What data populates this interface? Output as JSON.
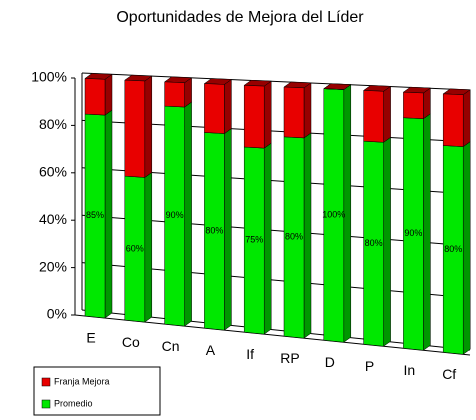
{
  "chart_data": {
    "type": "bar",
    "stacked": true,
    "title": "Oportunidades de Mejora del Líder",
    "categories": [
      "E",
      "Co",
      "Cn",
      "A",
      "If",
      "RP",
      "D",
      "P",
      "In",
      "Cf"
    ],
    "series": [
      {
        "name": "Promedio",
        "color": "#00e800",
        "values": [
          85,
          60,
          90,
          80,
          75,
          80,
          100,
          80,
          90,
          80
        ],
        "value_labels": [
          "85%",
          "60%",
          "90%",
          "80%",
          "75%",
          "80%",
          "100%",
          "80%",
          "90%",
          "80%"
        ]
      },
      {
        "name": "Franja Mejora",
        "color": "#e80000",
        "values": [
          15,
          40,
          10,
          20,
          25,
          20,
          0,
          20,
          10,
          20
        ]
      }
    ],
    "ylim": [
      0,
      100
    ],
    "yticks": [
      {
        "value": 0,
        "label": "0%"
      },
      {
        "value": 20,
        "label": "20%"
      },
      {
        "value": 40,
        "label": "40%"
      },
      {
        "value": 60,
        "label": "60%"
      },
      {
        "value": 80,
        "label": "80%"
      },
      {
        "value": 100,
        "label": "100%"
      }
    ],
    "grid": true
  }
}
